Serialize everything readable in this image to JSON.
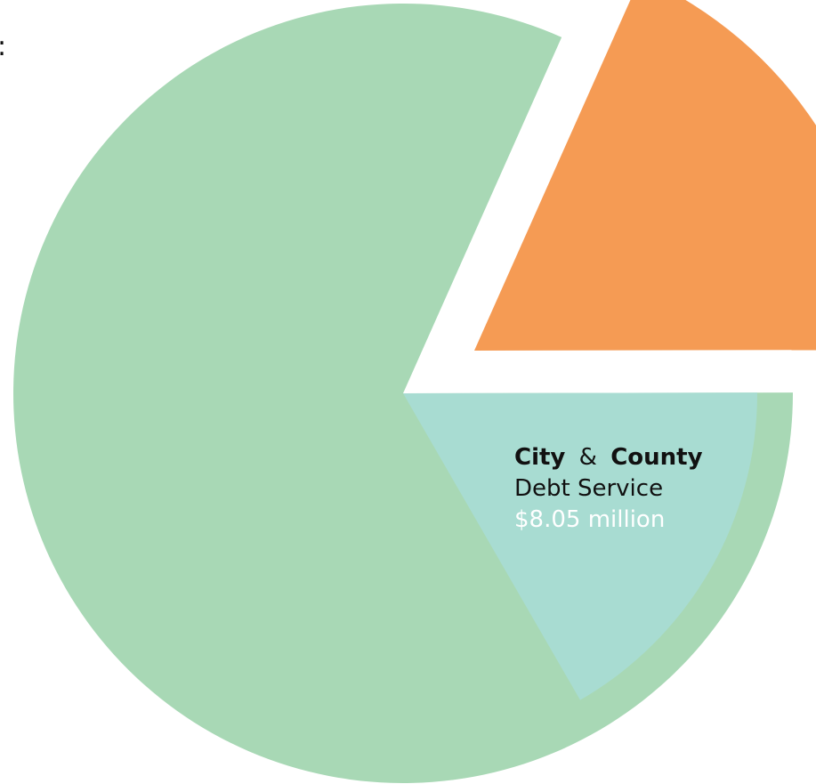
{
  "chart_data": {
    "type": "pie",
    "slices": [
      {
        "segment": "large",
        "percent": 65.0,
        "color": "#a8d8b5",
        "exploded": false
      },
      {
        "segment": "orange",
        "percent": 18.3,
        "color": "#f59b54",
        "exploded": true
      },
      {
        "segment": "debt-service",
        "percent": 16.7,
        "color": "#a8dcd2",
        "exploded": false
      }
    ],
    "labels": {
      "city": "City",
      "amp": "&",
      "county": "County",
      "category": "Debt Service",
      "amount": "$8.05 million"
    },
    "label_colors": {
      "text": "#111111",
      "amount": "#ffffff"
    },
    "edge_mark": ":",
    "title": ""
  }
}
